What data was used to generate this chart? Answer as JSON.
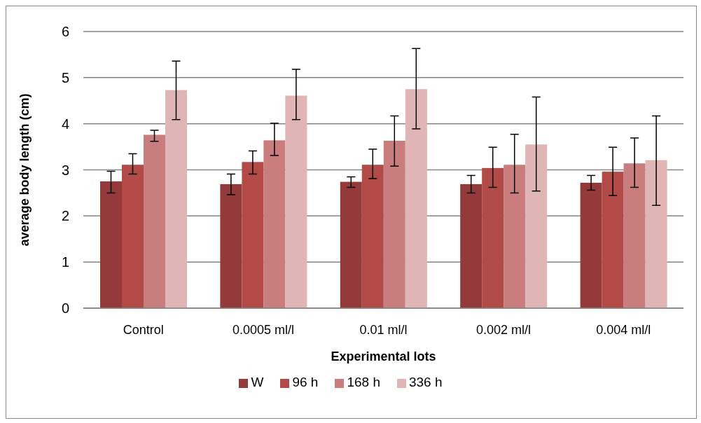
{
  "chart_data": {
    "type": "bar",
    "xlabel": "Experimental lots",
    "ylabel": "average body length (cm)",
    "categories": [
      "Control",
      "0.0005 ml/l",
      "0.01 ml/l",
      "0.002 ml/l",
      "0.004 ml/l"
    ],
    "series": [
      {
        "name": "W",
        "color": "#953a3a",
        "values": [
          2.75,
          2.69,
          2.74,
          2.69,
          2.72
        ],
        "errors": [
          [
            2.5,
            2.97
          ],
          [
            2.46,
            2.91
          ],
          [
            2.62,
            2.85
          ],
          [
            2.5,
            2.88
          ],
          [
            2.56,
            2.88
          ]
        ]
      },
      {
        "name": "96 h",
        "color": "#b24a48",
        "values": [
          3.11,
          3.17,
          3.11,
          3.04,
          2.96
        ],
        "errors": [
          [
            2.91,
            3.35
          ],
          [
            2.91,
            3.41
          ],
          [
            2.81,
            3.45
          ],
          [
            2.62,
            3.49
          ],
          [
            2.44,
            3.49
          ]
        ]
      },
      {
        "name": "168 h",
        "color": "#c97d7c",
        "values": [
          3.76,
          3.64,
          3.63,
          3.11,
          3.14
        ],
        "errors": [
          [
            3.62,
            3.86
          ],
          [
            3.31,
            4.01
          ],
          [
            3.08,
            4.17
          ],
          [
            2.5,
            3.77
          ],
          [
            2.62,
            3.69
          ]
        ]
      },
      {
        "name": "336 h",
        "color": "#dfb5b5",
        "values": [
          4.73,
          4.61,
          4.75,
          3.55,
          3.21
        ],
        "errors": [
          [
            4.09,
            5.36
          ],
          [
            4.09,
            5.18
          ],
          [
            3.89,
            5.63
          ],
          [
            2.54,
            4.58
          ],
          [
            2.23,
            4.17
          ]
        ]
      }
    ],
    "ylim": [
      0,
      6
    ],
    "yticks": [
      0,
      1,
      2,
      3,
      4,
      5,
      6
    ],
    "grid": "y",
    "legend": "bottom"
  }
}
